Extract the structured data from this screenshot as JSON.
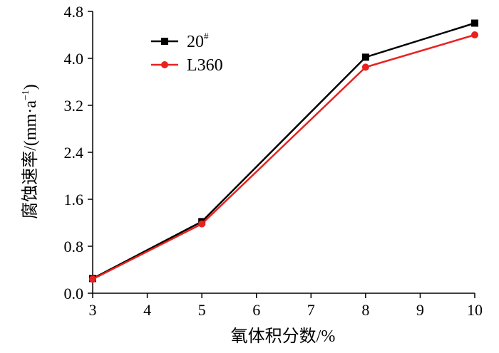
{
  "chart_data": {
    "type": "line",
    "xlabel": "氧体积分数/%",
    "ylabel_main": "腐蚀速率/(mm·a",
    "ylabel_sup": "−1",
    "ylabel_close": ")",
    "x_ticks": [
      3,
      4,
      5,
      6,
      7,
      8,
      9,
      10
    ],
    "y_ticks": [
      "0.0",
      "0.8",
      "1.6",
      "2.4",
      "3.2",
      "4.0",
      "4.8"
    ],
    "xlim": [
      3,
      10
    ],
    "ylim": [
      0,
      4.8
    ],
    "grid": false,
    "legend_position": "top-left",
    "series": [
      {
        "name": "20",
        "name_sup": "#",
        "color": "#000000",
        "marker": "square",
        "x": [
          3,
          5,
          8,
          10
        ],
        "y": [
          0.25,
          1.22,
          4.02,
          4.6
        ]
      },
      {
        "name": "L360",
        "color": "#e8221f",
        "marker": "circle",
        "x": [
          3,
          5,
          8,
          10
        ],
        "y": [
          0.24,
          1.18,
          3.85,
          4.4
        ]
      }
    ]
  }
}
